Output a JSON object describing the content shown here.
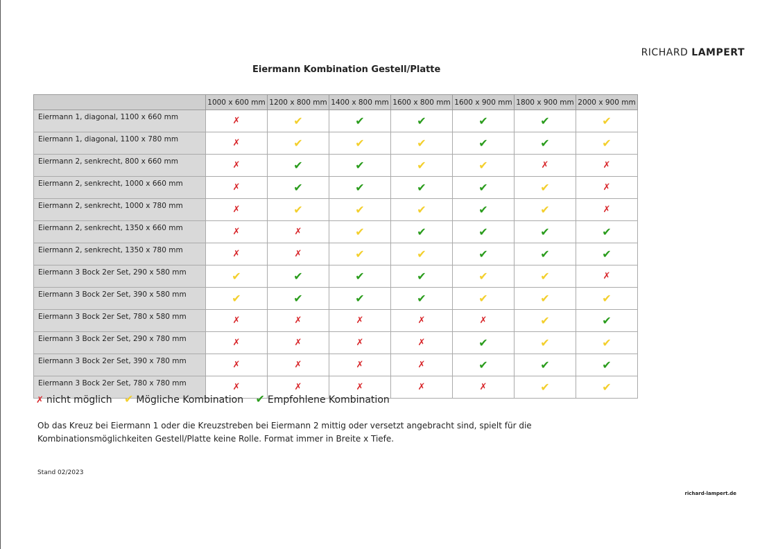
{
  "logo": {
    "first": "RICHARD",
    "last": "LAMPERT"
  },
  "title": "Eiermann Kombination Gestell/Platte",
  "symbols": {
    "x": "✗",
    "y": "✔",
    "g": "✔"
  },
  "colors": {
    "x": "#d8262a",
    "y": "#f3cf2c",
    "g": "#2a9c1c"
  },
  "columns": [
    "1000 x 600 mm",
    "1200 x 800 mm",
    "1400 x 800 mm",
    "1600 x 800 mm",
    "1600 x 900 mm",
    "1800 x 900 mm",
    "2000 x 900 mm"
  ],
  "rows": [
    {
      "label": "Eiermann 1, diagonal, 1100 x 660 mm",
      "values": [
        "x",
        "y",
        "g",
        "g",
        "g",
        "g",
        "y"
      ]
    },
    {
      "label": "Eiermann 1, diagonal, 1100 x 780 mm",
      "values": [
        "x",
        "y",
        "y",
        "y",
        "g",
        "g",
        "y"
      ]
    },
    {
      "label": "Eiermann 2, senkrecht, 800 x 660 mm",
      "values": [
        "x",
        "g",
        "g",
        "y",
        "y",
        "x",
        "x"
      ],
      "group_start": true
    },
    {
      "label": "Eiermann 2, senkrecht, 1000 x 660 mm",
      "values": [
        "x",
        "g",
        "g",
        "g",
        "g",
        "y",
        "x"
      ]
    },
    {
      "label": "Eiermann 2, senkrecht, 1000 x 780 mm",
      "values": [
        "x",
        "y",
        "y",
        "y",
        "g",
        "y",
        "x"
      ]
    },
    {
      "label": "Eiermann 2, senkrecht, 1350 x 660 mm",
      "values": [
        "x",
        "x",
        "y",
        "g",
        "g",
        "g",
        "g"
      ]
    },
    {
      "label": "Eiermann 2, senkrecht, 1350 x 780 mm",
      "values": [
        "x",
        "x",
        "y",
        "y",
        "g",
        "g",
        "g"
      ]
    },
    {
      "label": "Eiermann 3 Bock 2er Set, 290 x 580 mm",
      "values": [
        "y",
        "g",
        "g",
        "g",
        "y",
        "y",
        "x"
      ],
      "group_start": true
    },
    {
      "label": "Eiermann 3 Bock 2er Set, 390 x 580 mm",
      "values": [
        "y",
        "g",
        "g",
        "g",
        "y",
        "y",
        "y"
      ]
    },
    {
      "label": "Eiermann 3 Bock 2er Set, 780 x 580 mm",
      "values": [
        "x",
        "x",
        "x",
        "x",
        "x",
        "y",
        "g"
      ]
    },
    {
      "label": "Eiermann 3 Bock 2er Set, 290 x 780 mm",
      "values": [
        "x",
        "x",
        "x",
        "x",
        "g",
        "y",
        "y"
      ]
    },
    {
      "label": "Eiermann 3 Bock 2er Set, 390 x 780 mm",
      "values": [
        "x",
        "x",
        "x",
        "x",
        "g",
        "g",
        "g"
      ]
    },
    {
      "label": "Eiermann 3 Bock 2er Set, 780 x 780 mm",
      "values": [
        "x",
        "x",
        "x",
        "x",
        "x",
        "y",
        "y"
      ]
    }
  ],
  "legend": {
    "x": "nicht möglich",
    "y": "Mögliche Kombination",
    "g": "Empfohlene Kombination"
  },
  "note": [
    "Ob das Kreuz bei Eiermann 1 oder die Kreuzstreben bei Eiermann 2 mittig oder versetzt angebracht sind, spielt für die",
    "Kombinationsmöglichkeiten Gestell/Platte keine Rolle. Format immer in Breite x Tiefe."
  ],
  "stand": "Stand 02/2023",
  "url": "richard-lampert.de"
}
